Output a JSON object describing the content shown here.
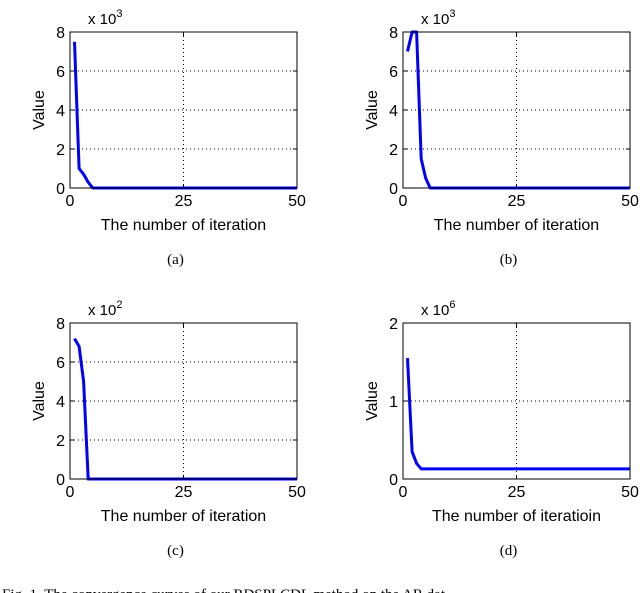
{
  "figure_caption_fragment": "Fig. 1.  The convergence curves of our RDSPLCDL method on the AR dat",
  "chart_data": [
    {
      "type": "line",
      "panel": "(a)",
      "xlabel": "The number of iteration",
      "ylabel": "Value",
      "multiplier_base": "x 10",
      "multiplier_exp": "3",
      "xlim": [
        0,
        50
      ],
      "ylim": [
        0,
        8
      ],
      "xticks": [
        "0",
        "25",
        "50"
      ],
      "yticks": [
        "0",
        "2",
        "4",
        "6",
        "8"
      ],
      "grid": true,
      "series": [
        {
          "color": "#0000ff",
          "x": [
            1,
            2,
            3,
            4,
            5,
            10,
            20,
            30,
            40,
            50
          ],
          "y": [
            7.5,
            1.0,
            0.7,
            0.3,
            0.0,
            0.0,
            0.0,
            0.0,
            0.0,
            0.0
          ]
        }
      ]
    },
    {
      "type": "line",
      "panel": "(b)",
      "xlabel": "The number of iteration",
      "ylabel": "Value",
      "multiplier_base": "x 10",
      "multiplier_exp": "3",
      "xlim": [
        0,
        50
      ],
      "ylim": [
        0,
        8
      ],
      "xticks": [
        "0",
        "25",
        "50"
      ],
      "yticks": [
        "0",
        "2",
        "4",
        "6",
        "8"
      ],
      "grid": true,
      "series": [
        {
          "color": "#0000ff",
          "x": [
            1,
            2,
            3,
            4,
            5,
            6,
            10,
            20,
            30,
            40,
            50
          ],
          "y": [
            7.0,
            8.0,
            8.0,
            1.5,
            0.5,
            0.0,
            0.0,
            0.0,
            0.0,
            0.0,
            0.0
          ]
        }
      ]
    },
    {
      "type": "line",
      "panel": "(c)",
      "xlabel": "The number of iteration",
      "ylabel": "Value",
      "multiplier_base": "x 10",
      "multiplier_exp": "2",
      "xlim": [
        0,
        50
      ],
      "ylim": [
        0,
        8
      ],
      "xticks": [
        "0",
        "25",
        "50"
      ],
      "yticks": [
        "0",
        "2",
        "4",
        "6",
        "8"
      ],
      "grid": true,
      "series": [
        {
          "color": "#0000ff",
          "x": [
            1,
            2,
            3,
            4,
            10,
            20,
            30,
            40,
            50
          ],
          "y": [
            7.2,
            6.8,
            5.0,
            0.0,
            0.0,
            0.0,
            0.0,
            0.0,
            0.0
          ]
        }
      ]
    },
    {
      "type": "line",
      "panel": "(d)",
      "xlabel": "The number of iteratioin",
      "ylabel": "Value",
      "multiplier_base": "x 10",
      "multiplier_exp": "6",
      "xlim": [
        0,
        50
      ],
      "ylim": [
        0,
        2
      ],
      "xticks": [
        "0",
        "25",
        "50"
      ],
      "yticks": [
        "0",
        "1",
        "2"
      ],
      "grid": true,
      "series": [
        {
          "color": "#0000ff",
          "x": [
            1,
            2,
            3,
            4,
            10,
            20,
            30,
            40,
            50
          ],
          "y": [
            1.55,
            0.35,
            0.2,
            0.13,
            0.13,
            0.13,
            0.13,
            0.13,
            0.13
          ]
        }
      ]
    }
  ]
}
